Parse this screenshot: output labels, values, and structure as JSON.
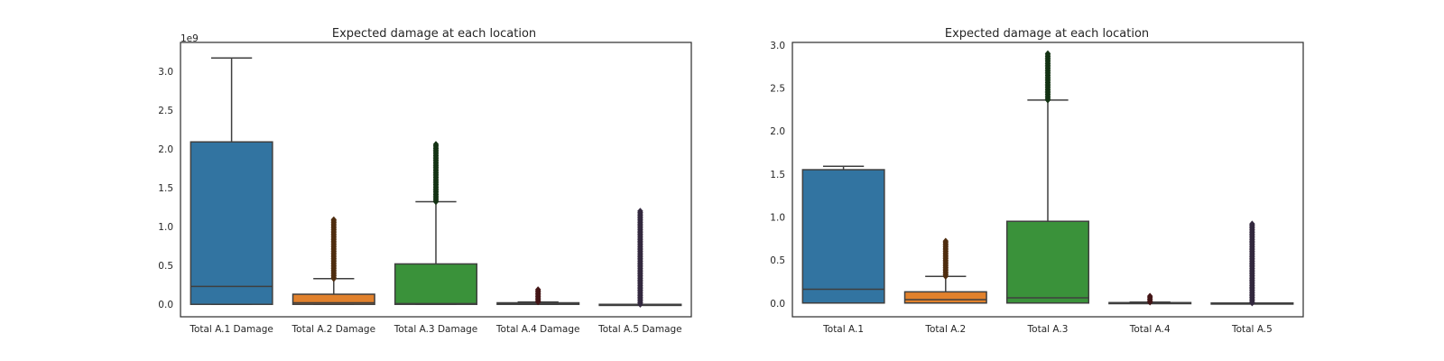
{
  "chart_data": [
    {
      "type": "box",
      "title": "Expected damage at each location",
      "xlabel": "",
      "ylabel": "",
      "y_scale_label": "1e9",
      "ylim": [
        -0.16,
        3.37
      ],
      "yticks": [
        0.0,
        0.5,
        1.0,
        1.5,
        2.0,
        2.5,
        3.0
      ],
      "ytick_labels": [
        "0.0",
        "0.5",
        "1.0",
        "1.5",
        "2.0",
        "2.5",
        "3.0"
      ],
      "grid": false,
      "categories": [
        "Total A.1 Damage",
        "Total A.2 Damage",
        "Total A.3 Damage",
        "Total A.4 Damage",
        "Total A.5 Damage"
      ],
      "colors": [
        "#3274a1",
        "#e1812c",
        "#3a923a",
        "#c03d3e",
        "#9372b2"
      ],
      "boxes": [
        {
          "q1": 0.0,
          "median": 0.23,
          "q3": 2.09,
          "whisker_low": 0.0,
          "whisker_high": 3.17,
          "fliers_range": null
        },
        {
          "q1": 0.0,
          "median": 0.02,
          "q3": 0.13,
          "whisker_low": 0.0,
          "whisker_high": 0.33,
          "fliers_range": [
            0.33,
            1.09
          ]
        },
        {
          "q1": 0.0,
          "median": 0.01,
          "q3": 0.52,
          "whisker_low": 0.0,
          "whisker_high": 1.32,
          "fliers_range": [
            1.32,
            2.06
          ]
        },
        {
          "q1": 0.0,
          "median": 0.005,
          "q3": 0.02,
          "whisker_low": 0.0,
          "whisker_high": 0.03,
          "fliers_range": [
            0.03,
            0.19
          ]
        },
        {
          "q1": 0.0,
          "median": 0.0,
          "q3": 0.0,
          "whisker_low": 0.0,
          "whisker_high": 0.0,
          "fliers_range": [
            0.0,
            1.2
          ]
        }
      ]
    },
    {
      "type": "box",
      "title": "Expected damage at each location",
      "xlabel": "",
      "ylabel": "",
      "y_scale_label": "",
      "ylim": [
        -0.16,
        3.03
      ],
      "yticks": [
        0.0,
        0.5,
        1.0,
        1.5,
        2.0,
        2.5,
        3.0
      ],
      "ytick_labels": [
        "0.0",
        "0.5",
        "1.0",
        "1.5",
        "2.0",
        "2.5",
        "3.0"
      ],
      "grid": false,
      "categories": [
        "Total A.1",
        "Total A.2",
        "Total A.3",
        "Total A.4",
        "Total A.5"
      ],
      "colors": [
        "#3274a1",
        "#e1812c",
        "#3a923a",
        "#c03d3e",
        "#9372b2"
      ],
      "boxes": [
        {
          "q1": 0.0,
          "median": 0.16,
          "q3": 1.55,
          "whisker_low": 0.0,
          "whisker_high": 1.59,
          "fliers_range": null
        },
        {
          "q1": 0.0,
          "median": 0.04,
          "q3": 0.13,
          "whisker_low": 0.0,
          "whisker_high": 0.31,
          "fliers_range": [
            0.31,
            0.72
          ]
        },
        {
          "q1": 0.0,
          "median": 0.06,
          "q3": 0.95,
          "whisker_low": 0.0,
          "whisker_high": 2.36,
          "fliers_range": [
            2.36,
            2.9
          ]
        },
        {
          "q1": 0.0,
          "median": 0.0,
          "q3": 0.005,
          "whisker_low": 0.0,
          "whisker_high": 0.01,
          "fliers_range": [
            0.01,
            0.08
          ]
        },
        {
          "q1": 0.0,
          "median": 0.0,
          "q3": 0.0,
          "whisker_low": 0.0,
          "whisker_high": 0.0,
          "fliers_range": [
            0.0,
            0.92
          ]
        }
      ]
    }
  ]
}
